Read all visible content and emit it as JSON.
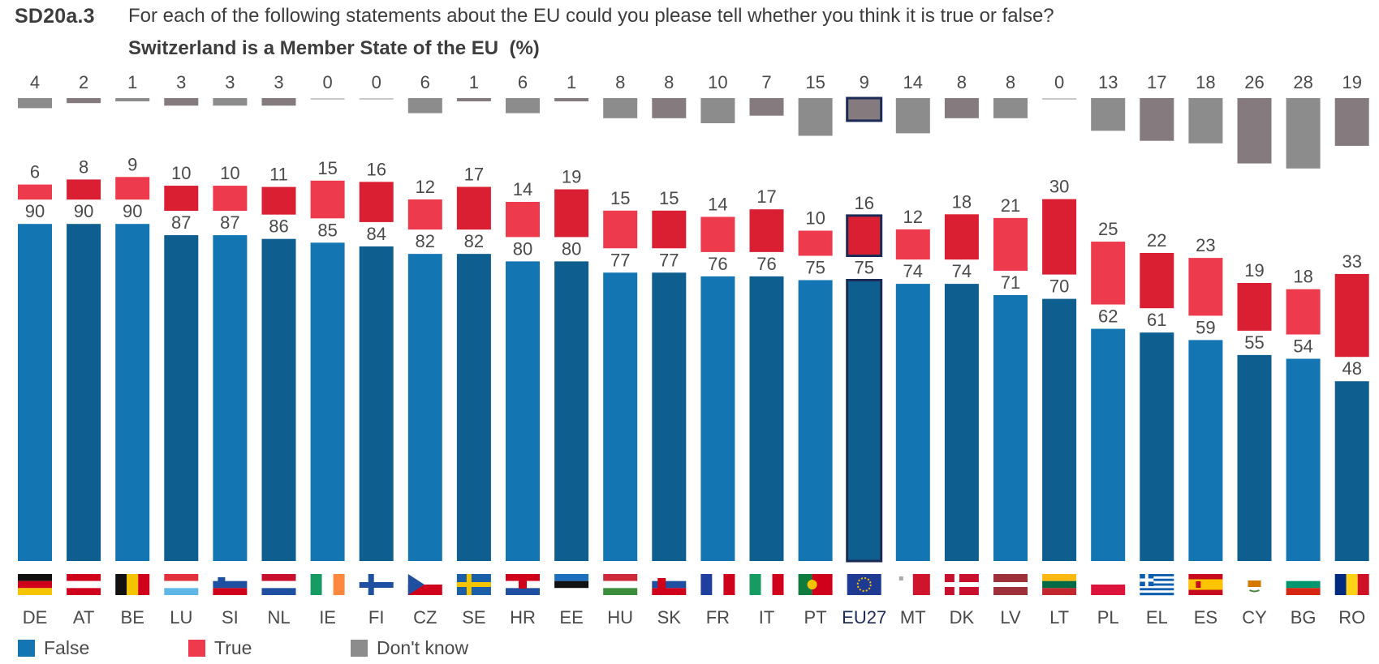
{
  "header": {
    "code": "SD20a.3",
    "question": "For each of the following statements about the EU could you please tell whether you think it is true or false?",
    "subtitle": "Switzerland is a Member State of the EU",
    "unit": "(%)"
  },
  "legend": {
    "false_label": "False",
    "true_label": "True",
    "dont_know_label": "Don't know"
  },
  "colors": {
    "false_even": "#1475b3",
    "false_odd": "#0e5e8f",
    "true_even": "#ee3a4d",
    "true_odd": "#db1f33",
    "dk_even": "#8c8c8c",
    "dk_odd": "#857b7e",
    "highlight_border": "#1b2b55",
    "label_text": "#4a4a4a"
  },
  "chart_data": {
    "type": "bar",
    "stacked": true,
    "categories": [
      "DE",
      "AT",
      "BE",
      "LU",
      "SI",
      "NL",
      "IE",
      "FI",
      "CZ",
      "SE",
      "HR",
      "EE",
      "HU",
      "SK",
      "FR",
      "IT",
      "PT",
      "EU27",
      "MT",
      "DK",
      "LV",
      "LT",
      "PL",
      "EL",
      "ES",
      "CY",
      "BG",
      "RO"
    ],
    "highlight": "EU27",
    "series": [
      {
        "name": "False",
        "values": [
          90,
          90,
          90,
          87,
          87,
          86,
          85,
          84,
          82,
          82,
          80,
          80,
          77,
          77,
          76,
          76,
          75,
          75,
          74,
          74,
          71,
          70,
          62,
          61,
          59,
          55,
          54,
          48
        ]
      },
      {
        "name": "True",
        "values": [
          6,
          8,
          9,
          10,
          10,
          11,
          15,
          16,
          12,
          17,
          14,
          19,
          15,
          15,
          14,
          17,
          10,
          16,
          12,
          18,
          21,
          30,
          25,
          22,
          23,
          19,
          18,
          33
        ]
      },
      {
        "name": "Don't know",
        "values": [
          4,
          2,
          1,
          3,
          3,
          3,
          0,
          0,
          6,
          1,
          6,
          1,
          8,
          8,
          10,
          7,
          15,
          9,
          14,
          8,
          8,
          0,
          13,
          17,
          18,
          26,
          28,
          19
        ]
      }
    ],
    "flags": [
      "flag-de",
      "flag-at",
      "flag-be",
      "flag-lu",
      "flag-si",
      "flag-nl",
      "flag-ie",
      "flag-fi",
      "flag-cz",
      "flag-se",
      "flag-hr",
      "flag-ee",
      "flag-hu",
      "flag-sk",
      "flag-fr",
      "flag-it",
      "flag-pt",
      "flag-eu",
      "flag-mt",
      "flag-dk",
      "flag-lv",
      "flag-lt",
      "flag-pl",
      "flag-el",
      "flag-es",
      "flag-cy",
      "flag-bg",
      "flag-ro"
    ],
    "ylim": [
      0,
      100
    ],
    "grid": false,
    "legend_position": "bottom-left",
    "xlabel": "",
    "ylabel": ""
  }
}
